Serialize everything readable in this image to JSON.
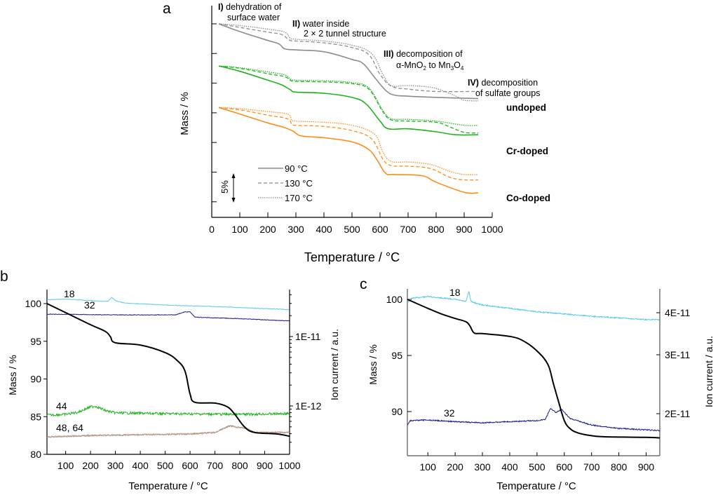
{
  "chart_data": [
    {
      "panel": "a",
      "type": "line",
      "panel_label": "a",
      "xlabel": "Temperature / °C",
      "xlabel_main": "Temperature / ",
      "xlabel_unit": "°C",
      "ylabel": "Mass / %",
      "xlim": [
        0,
        1000
      ],
      "ylim": [
        66,
        100
      ],
      "x_ticks": [
        0,
        100,
        200,
        300,
        400,
        500,
        600,
        700,
        800,
        900,
        1000
      ],
      "x_tick_labels": [
        "0",
        "100",
        "200",
        "300",
        "400",
        "500",
        "600",
        "700",
        "800",
        "900",
        "1000"
      ],
      "y_ticks": [
        100,
        95,
        90,
        85,
        80,
        75,
        70
      ],
      "y_tick_labels_shown": false,
      "scale_bar": {
        "label": "5%",
        "value": 5
      },
      "legend": [
        {
          "label": "90 °C",
          "style": "solid"
        },
        {
          "label": "130 °C",
          "style": "dashed"
        },
        {
          "label": "170 °C",
          "style": "dotted"
        }
      ],
      "annotations": [
        {
          "bold": "I)",
          "text": " dehydration of",
          "line2": "surface water"
        },
        {
          "bold": "II)",
          "text": " water inside",
          "line2": "2 × 2 tunnel structure"
        },
        {
          "bold": "III)",
          "text": " decomposition of",
          "line2": "α-MnO2 to Mn3O4"
        },
        {
          "bold": "IV)",
          "text": " decomposition",
          "line2": "of sulfate groups"
        }
      ],
      "group_labels": [
        "undoped",
        "Cr-doped",
        "Co-doped"
      ],
      "colors": {
        "undoped": "#8c8c8c",
        "Cr-doped": "#1db31d",
        "Co-doped": "#ff8c1a"
      },
      "series": [
        {
          "name": "undoped 90 °C",
          "group": "undoped",
          "style": "solid",
          "x": [
            25,
            100,
            200,
            240,
            260,
            300,
            400,
            500,
            540,
            580,
            620,
            650,
            700,
            800,
            950
          ],
          "y": [
            100,
            98.7,
            97.2,
            96.6,
            95.8,
            95.6,
            95.3,
            94.0,
            93.3,
            91.0,
            88.8,
            88.0,
            87.8,
            87.6,
            87.4
          ]
        },
        {
          "name": "undoped 130 °C",
          "group": "undoped",
          "style": "dashed",
          "x": [
            25,
            100,
            200,
            250,
            275,
            300,
            400,
            500,
            560,
            600,
            640,
            700,
            800,
            950
          ],
          "y": [
            100,
            99.4,
            98.6,
            98.2,
            97.3,
            97.1,
            96.8,
            96.0,
            94.8,
            91.5,
            89.5,
            89.0,
            88.6,
            88.6
          ]
        },
        {
          "name": "undoped 170 °C",
          "group": "undoped",
          "style": "dotted",
          "x": [
            25,
            100,
            200,
            260,
            280,
            300,
            400,
            500,
            570,
            610,
            640,
            700,
            780,
            830,
            880,
            900,
            950
          ],
          "y": [
            100,
            99.7,
            99.1,
            98.6,
            97.6,
            97.4,
            97.1,
            96.4,
            95.0,
            91.5,
            89.6,
            89.6,
            89.3,
            88.6,
            87.6,
            87.1,
            87.0
          ]
        },
        {
          "name": "Cr-doped 90 °C",
          "group": "Cr-doped",
          "style": "solid",
          "x": [
            25,
            100,
            200,
            250,
            280,
            300,
            400,
            500,
            550,
            600,
            630,
            700,
            800,
            870,
            950
          ],
          "y": [
            92.9,
            92.0,
            90.5,
            89.7,
            88.9,
            88.5,
            88.3,
            87.6,
            86.5,
            83.6,
            82.3,
            82.3,
            81.8,
            81.3,
            81.3
          ]
        },
        {
          "name": "Cr-doped 130 °C",
          "group": "Cr-doped",
          "style": "dashed",
          "x": [
            25,
            100,
            200,
            260,
            280,
            300,
            400,
            500,
            560,
            610,
            640,
            700,
            800,
            850,
            900,
            950
          ],
          "y": [
            92.9,
            92.5,
            91.6,
            91.1,
            90.5,
            90.3,
            90.2,
            89.9,
            89.0,
            85.2,
            83.8,
            83.6,
            83.4,
            82.6,
            81.7,
            81.6
          ]
        },
        {
          "name": "Cr-doped 170 °C",
          "group": "Cr-doped",
          "style": "dotted",
          "x": [
            25,
            100,
            200,
            260,
            280,
            300,
            400,
            500,
            560,
            610,
            640,
            700,
            800,
            900,
            950
          ],
          "y": [
            92.9,
            92.6,
            91.9,
            91.4,
            90.7,
            90.5,
            90.4,
            90.1,
            89.2,
            85.4,
            84.0,
            83.9,
            83.6,
            82.9,
            82.9
          ]
        },
        {
          "name": "Co-doped 90 °C",
          "group": "Co-doped",
          "style": "solid",
          "x": [
            25,
            100,
            200,
            260,
            290,
            320,
            400,
            500,
            560,
            590,
            620,
            650,
            750,
            800,
            900,
            950
          ],
          "y": [
            85.9,
            84.8,
            83.3,
            82.5,
            81.9,
            81.1,
            80.8,
            80.1,
            78.8,
            77.0,
            74.8,
            74.6,
            74.4,
            73.3,
            71.6,
            71.5
          ]
        },
        {
          "name": "Co-doped 130 °C",
          "group": "Co-doped",
          "style": "dashed",
          "x": [
            25,
            100,
            200,
            270,
            285,
            300,
            400,
            500,
            570,
            610,
            640,
            700,
            780,
            850,
            900,
            950
          ],
          "y": [
            85.9,
            85.5,
            84.6,
            84.0,
            83.1,
            82.9,
            82.7,
            82.0,
            80.6,
            77.2,
            76.1,
            76.0,
            75.6,
            74.1,
            73.7,
            73.7
          ]
        },
        {
          "name": "Co-doped 170 °C",
          "group": "Co-doped",
          "style": "dotted",
          "x": [
            25,
            100,
            200,
            270,
            285,
            300,
            400,
            500,
            580,
            610,
            640,
            700,
            780,
            850,
            900,
            950
          ],
          "y": [
            85.9,
            85.7,
            85.2,
            84.8,
            83.8,
            83.6,
            83.4,
            82.9,
            81.4,
            78.4,
            76.8,
            76.7,
            76.3,
            75.1,
            74.6,
            74.6
          ]
        }
      ]
    },
    {
      "panel": "b",
      "type": "line",
      "panel_label": "b",
      "xlabel": "Temperature / °C",
      "xlabel_main": "Temperature / ",
      "xlabel_unit": "°C",
      "ylabel": "Mass / %",
      "y2label": "Ion current / a.u.",
      "xlim": [
        25,
        1000
      ],
      "ylim": [
        80,
        101
      ],
      "x_ticks": [
        100,
        200,
        300,
        400,
        500,
        600,
        700,
        800,
        900,
        1000
      ],
      "x_tick_labels": [
        "100",
        "200",
        "300",
        "400",
        "500",
        "600",
        "700",
        "800",
        "900",
        "1000"
      ],
      "y_ticks": [
        80,
        85,
        90,
        95,
        100
      ],
      "y_tick_labels": [
        "80",
        "85",
        "90",
        "95",
        "100"
      ],
      "y2_scale": "log",
      "y2_tick_labels": [
        "1E-11",
        "1E-12"
      ],
      "y2_ticks": [
        1e-11,
        1e-12
      ],
      "mass_curve": {
        "name": "Mass",
        "color": "#000000",
        "x": [
          25,
          100,
          200,
          260,
          280,
          300,
          400,
          500,
          550,
          580,
          600,
          620,
          700,
          750,
          780,
          820,
          860,
          950,
          1000
        ],
        "y": [
          100,
          98.8,
          97.2,
          96.3,
          95.6,
          94.8,
          94.5,
          93.5,
          92.4,
          91.0,
          88.0,
          86.9,
          86.8,
          86.3,
          85.3,
          83.6,
          82.9,
          82.7,
          82.4
        ]
      },
      "ion_curves": [
        {
          "label": "18",
          "color": "#5ac8f0",
          "x": [
            25,
            100,
            250,
            270,
            285,
            300,
            330,
            500,
            700,
            1000
          ],
          "y_mass_axis": [
            100.5,
            100.6,
            100.3,
            100.3,
            100.8,
            100.4,
            100.1,
            99.8,
            99.6,
            99.2
          ]
        },
        {
          "label": "32",
          "color": "#1a1a8c",
          "x": [
            25,
            300,
            540,
            580,
            600,
            620,
            800,
            1000
          ],
          "y_mass_axis": [
            98.6,
            98.5,
            98.5,
            98.9,
            98.9,
            98.2,
            98.0,
            97.7
          ]
        },
        {
          "label": "44",
          "color": "#1db31d",
          "x": [
            25,
            100,
            150,
            200,
            220,
            260,
            300,
            500,
            800,
            1000
          ],
          "y_mass_axis": [
            85.2,
            85.3,
            85.6,
            86.3,
            86.4,
            85.8,
            85.5,
            85.4,
            85.3,
            85.4
          ]
        },
        {
          "label": "48, 64",
          "color": "#e8a070",
          "x": [
            25,
            200,
            400,
            600,
            700,
            760,
            790,
            820,
            860,
            1000
          ],
          "y_mass_axis": [
            82.3,
            82.5,
            82.6,
            82.7,
            82.9,
            83.8,
            83.6,
            83.5,
            82.9,
            82.9
          ]
        }
      ]
    },
    {
      "panel": "c",
      "type": "line",
      "panel_label": "c",
      "xlabel": "Temperature / °C",
      "xlabel_main": "Temperature / ",
      "xlabel_unit": "°C",
      "ylabel": "Mass / %",
      "y2label": "Ion current / a.u.",
      "xlim": [
        25,
        950
      ],
      "ylim": [
        86.5,
        101
      ],
      "x_ticks": [
        100,
        200,
        300,
        400,
        500,
        600,
        700,
        800,
        900
      ],
      "x_tick_labels": [
        "100",
        "200",
        "300",
        "400",
        "500",
        "600",
        "700",
        "800",
        "900"
      ],
      "y_ticks": [
        90,
        95,
        100
      ],
      "y_tick_labels": [
        "90",
        "95",
        "100"
      ],
      "y2_scale": "linear",
      "y2_tick_labels": [
        "4E-11",
        "3E-11",
        "2E-11"
      ],
      "y2_ticks": [
        4e-11,
        3e-11,
        2e-11
      ],
      "mass_curve": {
        "name": "Mass",
        "color": "#000000",
        "x": [
          25,
          100,
          150,
          200,
          240,
          255,
          270,
          300,
          400,
          450,
          500,
          540,
          560,
          580,
          600,
          620,
          650,
          700,
          750,
          900,
          950
        ],
        "y": [
          100,
          99.2,
          98.7,
          98.3,
          98.0,
          97.6,
          97.0,
          96.95,
          96.7,
          96.3,
          95.4,
          94.2,
          92.5,
          90.8,
          89.2,
          88.5,
          88.1,
          87.85,
          87.75,
          87.7,
          87.65
        ]
      },
      "ion_curves": [
        {
          "label": "18",
          "color": "#5ac8f0",
          "x": [
            25,
            40,
            100,
            200,
            240,
            250,
            258,
            270,
            300,
            500,
            700,
            900,
            950
          ],
          "y_mass_axis": [
            99.7,
            100.1,
            100.25,
            100.0,
            99.8,
            100.7,
            99.85,
            99.7,
            99.5,
            98.9,
            98.5,
            98.2,
            98.2
          ]
        },
        {
          "label": "32",
          "color": "#1a1a8c",
          "x": [
            25,
            35,
            100,
            200,
            300,
            400,
            500,
            530,
            550,
            560,
            570,
            590,
            620,
            700,
            800,
            950
          ],
          "y_mass_axis": [
            88.8,
            89.2,
            89.25,
            89.1,
            89.0,
            89.1,
            89.2,
            89.3,
            90.3,
            90.1,
            89.9,
            90.2,
            89.4,
            88.8,
            88.5,
            88.3
          ]
        }
      ]
    }
  ]
}
